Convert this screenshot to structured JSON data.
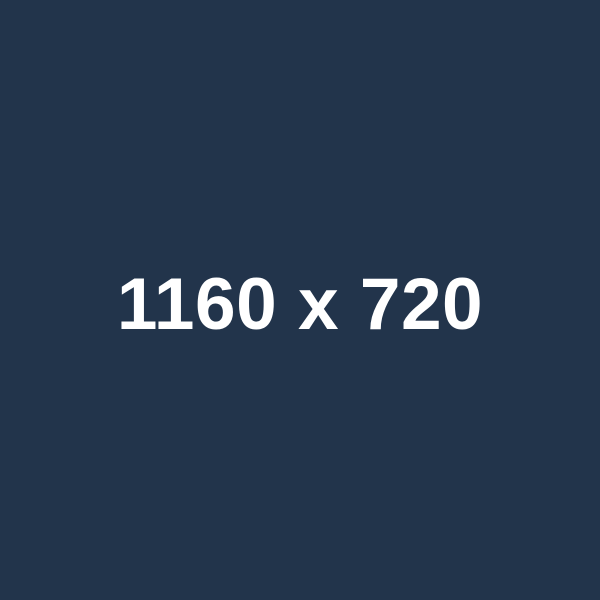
{
  "placeholder": {
    "label": "1160 x 720",
    "background_color": "#22344b",
    "text_color": "#ffffff"
  }
}
